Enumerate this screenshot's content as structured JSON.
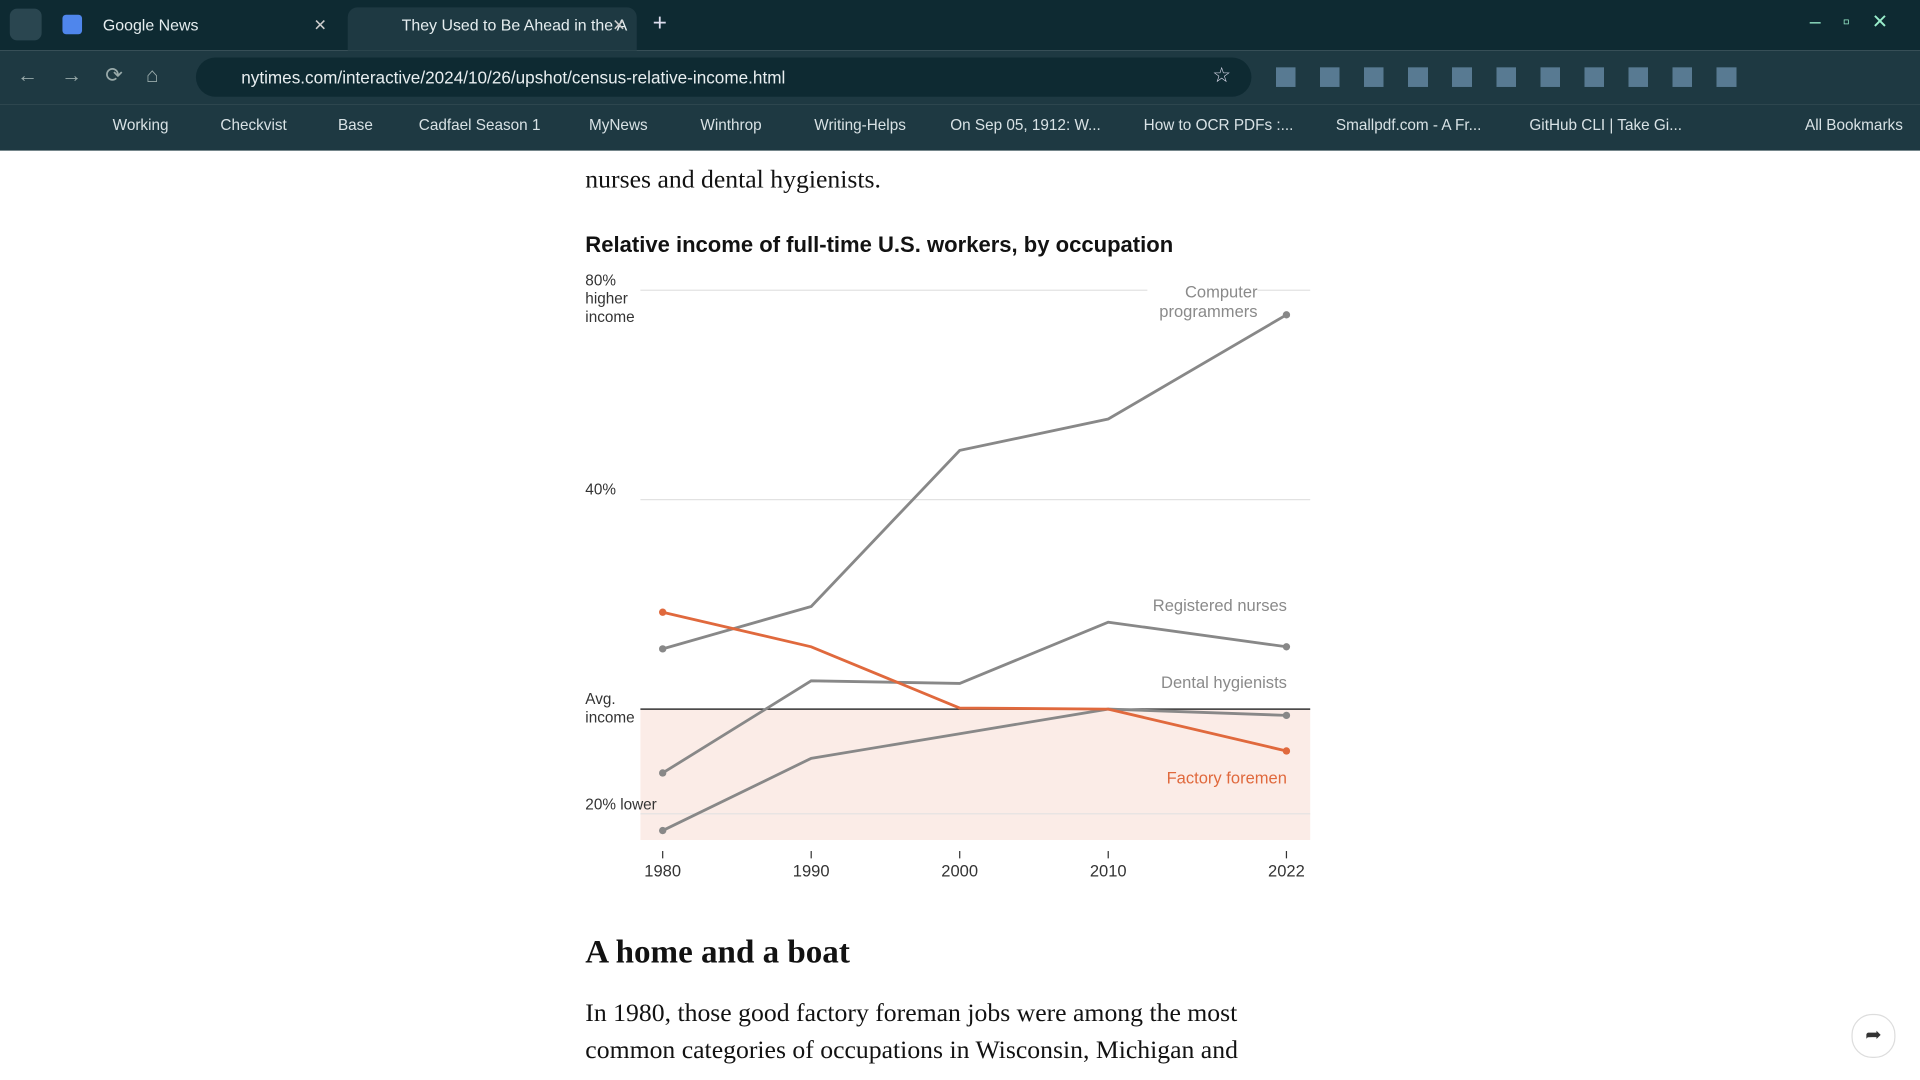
{
  "browser": {
    "tabs": [
      "Google News",
      "They Used to Be Ahead in the A"
    ],
    "url": "nytimes.com/interactive/2024/10/26/upshot/census-relative-income.html",
    "bookmarks": [
      "Working",
      "Checkvist",
      "Base",
      "Cadfael Season 1",
      "MyNews",
      "Winthrop",
      "Writing-Helps",
      "On Sep 05, 1912: W...",
      "How to OCR PDFs :...",
      "Smallpdf.com - A Fr...",
      "GitHub CLI | Take Gi..."
    ],
    "all_bookmarks": "All Bookmarks"
  },
  "article": {
    "intro_tail": "nurses and dental hygienists.",
    "heading": "A home and a boat",
    "paragraph": "In 1980, those good factory foreman jobs were among the most common categories of occupations in Wisconsin, Michigan and"
  },
  "chart_data": {
    "type": "line",
    "title": "Relative income of full-time U.S. workers, by occupation",
    "x": [
      1980,
      1990,
      2000,
      2010,
      2022
    ],
    "xlim": [
      1978.5,
      2023.6
    ],
    "xticks": [
      1980,
      1990,
      2000,
      2010,
      2022
    ],
    "ylim": [
      -25,
      80
    ],
    "yticks": [
      {
        "value": -20,
        "label": "20% lower"
      },
      {
        "value": 0,
        "label": "Avg. income"
      },
      {
        "value": 40,
        "label": "40%"
      },
      {
        "value": 80,
        "label": "80% higher income"
      }
    ],
    "grid": true,
    "series": [
      {
        "name": "Computer programmers",
        "color": "#888888",
        "values": [
          11.5,
          19.6,
          49.4,
          55.4,
          75.3
        ]
      },
      {
        "name": "Registered nurses",
        "color": "#888888",
        "values": [
          -12.2,
          5.4,
          4.9,
          16.6,
          11.9
        ]
      },
      {
        "name": "Dental hygienists",
        "color": "#888888",
        "values": [
          -23.2,
          -9.4,
          -4.7,
          0,
          -1.2
        ]
      },
      {
        "name": "Factory foremen",
        "color": "#e0693d",
        "values": [
          18.5,
          11.9,
          0.2,
          0,
          -8.0
        ]
      }
    ]
  }
}
